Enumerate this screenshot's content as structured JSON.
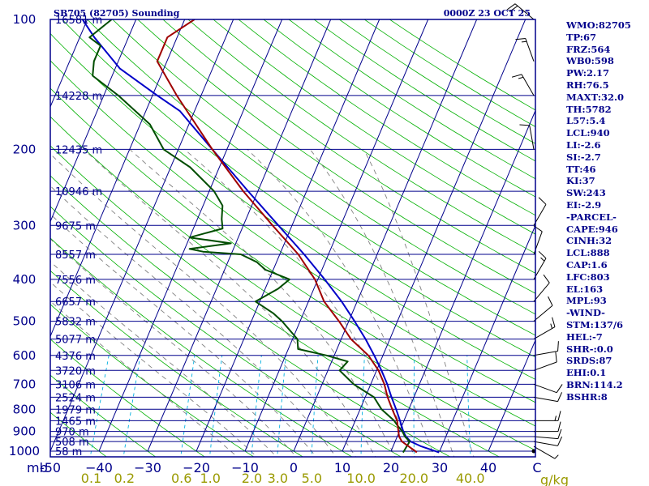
{
  "header": {
    "left_title": "SB705 (82705) Sounding",
    "right_title": "0000Z 23 OCT 25"
  },
  "colors": {
    "frame": "#00008b",
    "temperature": "#a00000",
    "dewpoint": "#004d00",
    "parcel": "#0000c8",
    "dry_adiabat": "#00b000",
    "moist_adiabat": "#808080",
    "mixing_ratio": "#00b0e0",
    "isotherm": "#00008b",
    "isobar": "#00008b",
    "mixing_label": "#9a9a00"
  },
  "chart_data": {
    "type": "skew-t",
    "title": "SB705 (82705) Sounding",
    "valid_time": "0000Z 23 OCT 25",
    "pressure_unit": "mb",
    "mixing_unit": "g/kg",
    "pressure_range_mb": [
      1000,
      100
    ],
    "temperature_range_c": [
      -50,
      50
    ],
    "pressure_ticks": [
      100,
      200,
      300,
      400,
      500,
      600,
      700,
      800,
      900,
      1000
    ],
    "isobars_mb": [
      100,
      150,
      200,
      250,
      300,
      350,
      400,
      450,
      500,
      550,
      600,
      650,
      700,
      750,
      800,
      850,
      900,
      925,
      950,
      1000
    ],
    "temperature_ticks": [
      -50,
      -40,
      -30,
      -20,
      -10,
      0,
      10,
      20,
      30,
      40,
      50
    ],
    "temperature_tick_labels": [
      "-50",
      "−40",
      "−30",
      "−20",
      "−10",
      "0",
      "10",
      "20",
      "30",
      "40",
      "C"
    ],
    "height_labels": [
      {
        "p": 100,
        "label": "16581 m"
      },
      {
        "p": 150,
        "label": "14228 m"
      },
      {
        "p": 200,
        "label": "12435 m"
      },
      {
        "p": 250,
        "label": "10946 m"
      },
      {
        "p": 300,
        "label": "9675 m"
      },
      {
        "p": 350,
        "label": "8557 m"
      },
      {
        "p": 400,
        "label": "7556 m"
      },
      {
        "p": 450,
        "label": "6657 m"
      },
      {
        "p": 500,
        "label": "5832 m"
      },
      {
        "p": 550,
        "label": "5077 m"
      },
      {
        "p": 600,
        "label": "4376 m"
      },
      {
        "p": 650,
        "label": "3720 m"
      },
      {
        "p": 700,
        "label": "3106 m"
      },
      {
        "p": 750,
        "label": "2524 m"
      },
      {
        "p": 800,
        "label": "1979 m"
      },
      {
        "p": 850,
        "label": "1465 m"
      },
      {
        "p": 900,
        "label": "970 m"
      },
      {
        "p": 950,
        "label": "508 m"
      },
      {
        "p": 1000,
        "label": "58 m"
      }
    ],
    "mixing_ratio_lines": [
      {
        "w": 0.1,
        "label": "0.1"
      },
      {
        "w": 0.2,
        "label": "0.2"
      },
      {
        "w": 0.6,
        "label": "0.6"
      },
      {
        "w": 1.0,
        "label": "1.0"
      },
      {
        "w": 2.0,
        "label": "2.0"
      },
      {
        "w": 3.0,
        "label": "3.0"
      },
      {
        "w": 5.0,
        "label": "5.0"
      },
      {
        "w": 10.0,
        "label": "10.0"
      },
      {
        "w": 20.0,
        "label": "20.0"
      },
      {
        "w": 40.0,
        "label": "40.0"
      }
    ],
    "temperature_profile": [
      [
        1007,
        25.4
      ],
      [
        1000,
        25.0
      ],
      [
        975,
        23.2
      ],
      [
        950,
        21.4
      ],
      [
        925,
        20.4
      ],
      [
        900,
        19.8
      ],
      [
        850,
        18.6
      ],
      [
        800,
        16.6
      ],
      [
        750,
        14.6
      ],
      [
        700,
        12.8
      ],
      [
        650,
        10.4
      ],
      [
        600,
        7.0
      ],
      [
        550,
        2.0
      ],
      [
        500,
        -2.0
      ],
      [
        450,
        -6.8
      ],
      [
        400,
        -10.6
      ],
      [
        350,
        -16.2
      ],
      [
        300,
        -24.0
      ],
      [
        250,
        -33.0
      ],
      [
        200,
        -43.0
      ],
      [
        150,
        -55.0
      ],
      [
        125,
        -62.0
      ],
      [
        110,
        -62.0
      ],
      [
        100,
        -58.0
      ]
    ],
    "dewpoint_profile": [
      [
        1007,
        22.6
      ],
      [
        975,
        22.8
      ],
      [
        950,
        23.0
      ],
      [
        925,
        21.6
      ],
      [
        900,
        20.6
      ],
      [
        870,
        19.0
      ],
      [
        850,
        18.0
      ],
      [
        800,
        14.4
      ],
      [
        750,
        11.8
      ],
      [
        700,
        6.5
      ],
      [
        650,
        2.4
      ],
      [
        620,
        3.3
      ],
      [
        600,
        -1.6
      ],
      [
        580,
        -8.0
      ],
      [
        550,
        -9.0
      ],
      [
        500,
        -13.7
      ],
      [
        480,
        -16.1
      ],
      [
        450,
        -20.9
      ],
      [
        420,
        -17.3
      ],
      [
        400,
        -15.8
      ],
      [
        380,
        -21.6
      ],
      [
        365,
        -24.0
      ],
      [
        350,
        -28.0
      ],
      [
        345,
        -36.0
      ],
      [
        340,
        -39.0
      ],
      [
        330,
        -31.0
      ],
      [
        320,
        -40.0
      ],
      [
        305,
        -34.0
      ],
      [
        290,
        -35.0
      ],
      [
        270,
        -36.0
      ],
      [
        250,
        -39.0
      ],
      [
        220,
        -46.0
      ],
      [
        200,
        -53.0
      ],
      [
        175,
        -58.0
      ],
      [
        150,
        -67.0
      ],
      [
        135,
        -74.0
      ],
      [
        125,
        -75.0
      ],
      [
        115,
        -75.0
      ],
      [
        110,
        -78.0
      ],
      [
        100,
        -75.0
      ]
    ],
    "parcel_profile": [
      [
        1007,
        30.0
      ],
      [
        975,
        25.8
      ],
      [
        950,
        23.2
      ],
      [
        925,
        21.8
      ],
      [
        900,
        20.8
      ],
      [
        850,
        19.2
      ],
      [
        800,
        17.4
      ],
      [
        750,
        15.4
      ],
      [
        700,
        13.4
      ],
      [
        650,
        11.0
      ],
      [
        600,
        8.2
      ],
      [
        550,
        5.0
      ],
      [
        500,
        1.2
      ],
      [
        450,
        -3.2
      ],
      [
        400,
        -8.6
      ],
      [
        350,
        -15.0
      ],
      [
        300,
        -22.8
      ],
      [
        250,
        -32.0
      ],
      [
        200,
        -43.0
      ],
      [
        163,
        -53.0
      ],
      [
        150,
        -59.0
      ],
      [
        130,
        -69.0
      ],
      [
        110,
        -77.0
      ],
      [
        100,
        -81.0
      ]
    ],
    "wind_barbs": [
      {
        "p": 1000,
        "dir": 0,
        "spd": 0
      },
      {
        "p": 975,
        "dir": 120,
        "spd": 5
      },
      {
        "p": 950,
        "dir": 100,
        "spd": 10
      },
      {
        "p": 925,
        "dir": 95,
        "spd": 10
      },
      {
        "p": 900,
        "dir": 90,
        "spd": 10
      },
      {
        "p": 850,
        "dir": 90,
        "spd": 15
      },
      {
        "p": 750,
        "dir": 100,
        "spd": 10
      },
      {
        "p": 700,
        "dir": 110,
        "spd": 10
      },
      {
        "p": 650,
        "dir": 70,
        "spd": 10
      },
      {
        "p": 600,
        "dir": 80,
        "spd": 10
      },
      {
        "p": 550,
        "dir": 60,
        "spd": 15
      },
      {
        "p": 500,
        "dir": 50,
        "spd": 10
      },
      {
        "p": 450,
        "dir": 40,
        "spd": 10
      },
      {
        "p": 400,
        "dir": 30,
        "spd": 15
      },
      {
        "p": 350,
        "dir": 20,
        "spd": 10
      },
      {
        "p": 300,
        "dir": 30,
        "spd": 10
      },
      {
        "p": 200,
        "dir": 350,
        "spd": 10
      },
      {
        "p": 150,
        "dir": 330,
        "spd": 15
      },
      {
        "p": 125,
        "dir": 340,
        "spd": 15
      },
      {
        "p": 100,
        "dir": 310,
        "spd": 20
      }
    ]
  },
  "indices": [
    "WMO:82705",
    "TP:67",
    "FRZ:564",
    "WB0:598",
    "PW:2.17",
    "RH:76.5",
    "MAXT:32.0",
    "TH:5782",
    "L57:5.4",
    "LCL:940",
    "LI:-2.6",
    "SI:-2.7",
    "TT:46",
    "KI:37",
    "SW:243",
    "EI:-2.9",
    "-PARCEL-",
    "CAPE:946",
    "CINH:32",
    "LCL:888",
    "CAP:1.6",
    "LFC:803",
    "EL:163",
    "MPL:93",
    "-WIND-",
    "STM:137/6",
    "HEL:-7",
    "SHR-:0.0",
    "SRDS:87",
    "EHI:0.1",
    "BRN:114.2",
    "BSHR:8"
  ]
}
